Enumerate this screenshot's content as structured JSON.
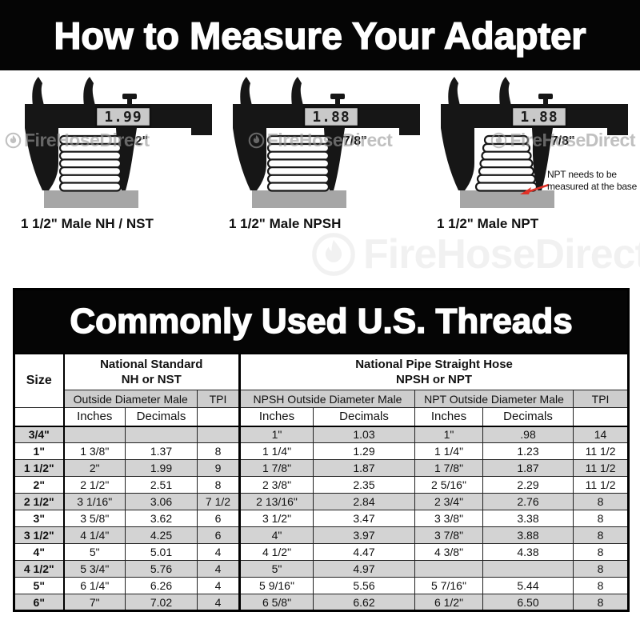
{
  "page": {
    "title_banner": "How to Measure Your Adapter"
  },
  "watermark": {
    "brand": "FireHoseDirect"
  },
  "calipers": [
    {
      "reading": "1.99",
      "size_label": "2\"",
      "caption": "1 1/2\" Male NH / NST"
    },
    {
      "reading": "1.88",
      "size_label": "1 7/8\"",
      "caption": "1 1/2\" Male NPSH"
    },
    {
      "reading": "1.88",
      "size_label": "1 7/8\"",
      "caption": "1 1/2\" Male NPT",
      "note_line1": "NPT needs to be",
      "note_line2": "measured at the base"
    }
  ],
  "table": {
    "title": "Commonly Used U.S. Threads",
    "size_header": "Size",
    "group1_line1": "National Standard",
    "group1_line2": "NH or NST",
    "group2_line1": "National Pipe Straight Hose",
    "group2_line2": "NPSH or NPT",
    "sub_outside_male": "Outside Diameter Male",
    "sub_npsh_outside_male": "NPSH Outside Diameter Male",
    "sub_npt_outside_male": "NPT Outside Diameter Male",
    "tpi": "TPI",
    "col_inches": "Inches",
    "col_decimals": "Decimals",
    "rows": [
      {
        "size": "3/4\"",
        "cells": [
          "",
          "",
          "",
          "1\"",
          "1.03",
          "1\"",
          ".98",
          "14"
        ]
      },
      {
        "size": "1\"",
        "cells": [
          "1 3/8\"",
          "1.37",
          "8",
          "1 1/4\"",
          "1.29",
          "1 1/4\"",
          "1.23",
          "11 1/2"
        ]
      },
      {
        "size": "1 1/2\"",
        "cells": [
          "2\"",
          "1.99",
          "9",
          "1 7/8\"",
          "1.87",
          "1 7/8\"",
          "1.87",
          "11 1/2"
        ]
      },
      {
        "size": "2\"",
        "cells": [
          "2 1/2\"",
          "2.51",
          "8",
          "2 3/8\"",
          "2.35",
          "2 5/16\"",
          "2.29",
          "11 1/2"
        ]
      },
      {
        "size": "2 1/2\"",
        "cells": [
          "3 1/16\"",
          "3.06",
          "7 1/2",
          "2 13/16\"",
          "2.84",
          "2 3/4\"",
          "2.76",
          "8"
        ]
      },
      {
        "size": "3\"",
        "cells": [
          "3 5/8\"",
          "3.62",
          "6",
          "3 1/2\"",
          "3.47",
          "3 3/8\"",
          "3.38",
          "8"
        ]
      },
      {
        "size": "3 1/2\"",
        "cells": [
          "4 1/4\"",
          "4.25",
          "6",
          "4\"",
          "3.97",
          "3 7/8\"",
          "3.88",
          "8"
        ]
      },
      {
        "size": "4\"",
        "cells": [
          "5\"",
          "5.01",
          "4",
          "4 1/2\"",
          "4.47",
          "4 3/8\"",
          "4.38",
          "8"
        ]
      },
      {
        "size": "4 1/2\"",
        "cells": [
          "5 3/4\"",
          "5.76",
          "4",
          "5\"",
          "4.97",
          "",
          "",
          "8"
        ]
      },
      {
        "size": "5\"",
        "cells": [
          "6 1/4\"",
          "6.26",
          "4",
          "5 9/16\"",
          "5.56",
          "5 7/16\"",
          "5.44",
          "8"
        ]
      },
      {
        "size": "6\"",
        "cells": [
          "7\"",
          "7.02",
          "4",
          "6 5/8\"",
          "6.62",
          "6 1/2\"",
          "6.50",
          "8"
        ]
      }
    ]
  },
  "colors": {
    "banner_bg": "#050505",
    "row_gray": "#d3d3d3",
    "header_gray": "#cdcdcd",
    "base_gray": "#a6a6a6",
    "annotation_red": "#e03127"
  }
}
